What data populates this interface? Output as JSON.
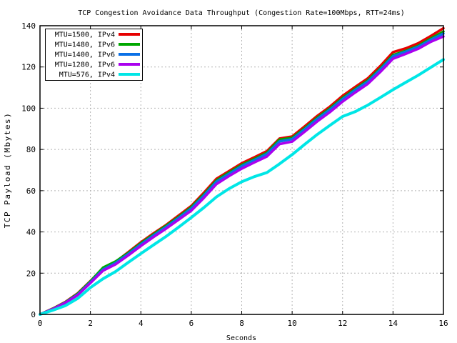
{
  "window": {
    "background": "#ffffff"
  },
  "chart_data": {
    "type": "line",
    "title": "TCP Congestion Avoidance Data Throughput (Congestion Rate=100Mbps, RTT=24ms)",
    "xlabel": "Seconds",
    "ylabel": "TCP Payload (Mbytes)",
    "xlim": [
      0,
      16
    ],
    "ylim": [
      0,
      140
    ],
    "xticks": [
      0,
      2,
      4,
      6,
      8,
      10,
      12,
      14,
      16
    ],
    "yticks": [
      0,
      20,
      40,
      60,
      80,
      100,
      120,
      140
    ],
    "grid": true,
    "grid_style": "dashed",
    "grid_color": "#b3b3b3",
    "border_color": "#000000",
    "legend_position": "top-left",
    "x": [
      0,
      0.5,
      1,
      1.5,
      2,
      2.5,
      3,
      3.5,
      4,
      4.5,
      5,
      5.5,
      6,
      6.5,
      7,
      7.5,
      8,
      8.5,
      9,
      9.5,
      10,
      10.5,
      11,
      11.5,
      12,
      12.5,
      13,
      13.5,
      14,
      14.5,
      15,
      15.5,
      16
    ],
    "series": [
      {
        "name": "MTU=1500, IPv4",
        "color": "#e60000",
        "values": [
          0,
          2.8,
          6.0,
          10.3,
          16.2,
          22.5,
          25.5,
          30.2,
          35.0,
          39.3,
          43.4,
          48.0,
          52.6,
          59.0,
          65.8,
          69.5,
          73.3,
          76.2,
          79.2,
          85.3,
          86.3,
          91.2,
          96.3,
          100.8,
          106.0,
          110.3,
          114.5,
          120.5,
          127.2,
          129.0,
          131.5,
          135.0,
          138.8
        ]
      },
      {
        "name": "MTU=1480, IPv6",
        "color": "#00a800",
        "values": [
          0,
          2.7,
          5.8,
          10.1,
          16.0,
          22.7,
          25.7,
          29.8,
          34.5,
          38.8,
          43.0,
          47.3,
          52.0,
          58.2,
          65.0,
          68.8,
          72.5,
          75.4,
          78.4,
          84.8,
          85.6,
          90.3,
          95.4,
          99.9,
          105.0,
          109.3,
          113.5,
          119.3,
          125.8,
          127.8,
          130.3,
          133.8,
          137.2
        ]
      },
      {
        "name": "MTU=1400, IPv6",
        "color": "#0a70e6",
        "values": [
          0,
          2.6,
          5.7,
          9.7,
          15.6,
          21.8,
          25.0,
          29.3,
          34.0,
          38.3,
          42.4,
          46.8,
          51.4,
          57.6,
          64.4,
          68.2,
          71.9,
          74.8,
          77.8,
          83.9,
          85.0,
          89.8,
          94.8,
          99.3,
          104.4,
          108.8,
          112.9,
          118.8,
          125.2,
          127.4,
          129.8,
          133.2,
          136.2
        ]
      },
      {
        "name": "MTU=1280, IPv6",
        "color": "#aa00ee",
        "values": [
          0,
          2.5,
          5.5,
          9.4,
          15.2,
          21.2,
          24.3,
          28.6,
          33.2,
          37.5,
          41.6,
          45.9,
          50.3,
          56.5,
          63.2,
          67.1,
          70.7,
          73.7,
          76.6,
          82.6,
          83.8,
          88.6,
          93.6,
          98.1,
          103.2,
          107.6,
          111.8,
          117.6,
          124.0,
          126.3,
          128.8,
          132.2,
          134.8
        ]
      },
      {
        "name": "MTU=576, IPv4",
        "color": "#00e6e6",
        "values": [
          0,
          2.0,
          4.2,
          7.8,
          13.0,
          17.3,
          20.8,
          25.2,
          29.5,
          33.7,
          37.8,
          42.3,
          47.0,
          51.8,
          57.0,
          61.0,
          64.3,
          66.8,
          68.8,
          73.0,
          77.5,
          82.5,
          87.3,
          91.7,
          96.0,
          98.3,
          101.5,
          105.2,
          109.0,
          112.5,
          116.0,
          119.8,
          123.6
        ]
      }
    ]
  }
}
